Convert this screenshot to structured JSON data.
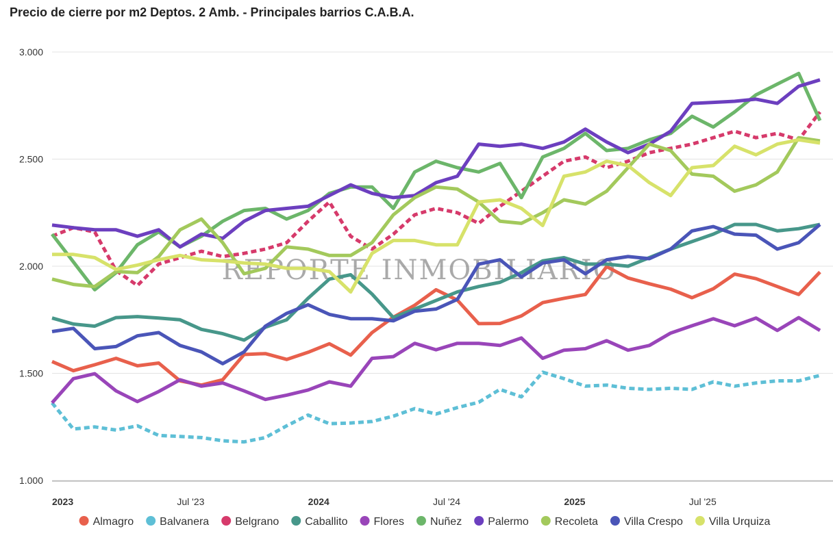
{
  "chart_data": {
    "type": "line",
    "title": "Precio de cierre por m2 Deptos. 2 Amb. - Principales barrios C.A.B.A.",
    "watermark": "REPORTE INMOBILIARIO",
    "xlabel": "",
    "ylabel": "",
    "ylim": [
      1000,
      3000
    ],
    "yticks": [
      {
        "value": 1000,
        "label": "1.000"
      },
      {
        "value": 1500,
        "label": "1.500"
      },
      {
        "value": 2000,
        "label": "2.000"
      },
      {
        "value": 2500,
        "label": "2.500"
      },
      {
        "value": 3000,
        "label": "3.000"
      }
    ],
    "xticks": [
      {
        "index": 0.5,
        "label": "2023",
        "bold": true
      },
      {
        "index": 6.5,
        "label": "Jul '23",
        "bold": false
      },
      {
        "index": 12.5,
        "label": "2024",
        "bold": true
      },
      {
        "index": 18.5,
        "label": "Jul '24",
        "bold": false
      },
      {
        "index": 24.5,
        "label": "2025",
        "bold": true
      },
      {
        "index": 30.5,
        "label": "Jul '25",
        "bold": false
      }
    ],
    "n_points": 37,
    "series": [
      {
        "name": "Almagro",
        "color": "#e8604c",
        "dashed": false,
        "values": [
          1555,
          1512,
          1540,
          1570,
          1535,
          1548,
          1465,
          1445,
          1470,
          1588,
          1592,
          1565,
          1598,
          1638,
          1585,
          1690,
          1762,
          1818,
          1890,
          1842,
          1732,
          1733,
          1768,
          1830,
          1850,
          1868,
          1998,
          1945,
          1918,
          1893,
          1853,
          1895,
          1963,
          1942,
          1905,
          1868,
          1973
        ]
      },
      {
        "name": "Balvanera",
        "color": "#5ebfd6",
        "dashed": true,
        "values": [
          1362,
          1240,
          1250,
          1235,
          1255,
          1210,
          1205,
          1200,
          1185,
          1180,
          1200,
          1255,
          1305,
          1265,
          1268,
          1275,
          1300,
          1335,
          1310,
          1340,
          1365,
          1425,
          1390,
          1505,
          1475,
          1440,
          1445,
          1430,
          1425,
          1430,
          1425,
          1460,
          1440,
          1455,
          1465,
          1465,
          1490
        ]
      },
      {
        "name": "Belgrano",
        "color": "#d63a6b",
        "dashed": true,
        "values": [
          2140,
          2180,
          2160,
          1980,
          1910,
          2010,
          2040,
          2070,
          2045,
          2060,
          2080,
          2110,
          2210,
          2300,
          2140,
          2080,
          2150,
          2240,
          2270,
          2250,
          2200,
          2280,
          2350,
          2420,
          2490,
          2510,
          2460,
          2490,
          2530,
          2550,
          2570,
          2600,
          2630,
          2600,
          2620,
          2590,
          2720
        ]
      },
      {
        "name": "Caballito",
        "color": "#47978a",
        "dashed": false,
        "values": [
          1758,
          1730,
          1720,
          1760,
          1765,
          1758,
          1750,
          1705,
          1685,
          1655,
          1715,
          1750,
          1850,
          1940,
          1960,
          1870,
          1760,
          1800,
          1840,
          1880,
          1905,
          1925,
          1970,
          2025,
          2040,
          2010,
          2010,
          2000,
          2040,
          2080,
          2115,
          2150,
          2195,
          2195,
          2165,
          2175,
          2195
        ]
      },
      {
        "name": "Flores",
        "color": "#9945b9",
        "dashed": false,
        "values": [
          1362,
          1475,
          1498,
          1418,
          1368,
          1415,
          1470,
          1440,
          1455,
          1418,
          1378,
          1398,
          1422,
          1460,
          1440,
          1570,
          1578,
          1640,
          1610,
          1640,
          1640,
          1630,
          1665,
          1570,
          1608,
          1615,
          1652,
          1608,
          1630,
          1688,
          1722,
          1755,
          1722,
          1758,
          1700,
          1760,
          1700
        ]
      },
      {
        "name": "Nuñez",
        "color": "#6cb66a",
        "dashed": false,
        "values": [
          2150,
          2020,
          1890,
          1970,
          2100,
          2160,
          2090,
          2140,
          2210,
          2260,
          2270,
          2220,
          2260,
          2340,
          2370,
          2370,
          2270,
          2440,
          2490,
          2460,
          2440,
          2480,
          2320,
          2510,
          2550,
          2620,
          2540,
          2550,
          2590,
          2620,
          2700,
          2650,
          2720,
          2800,
          2850,
          2900,
          2680
        ]
      },
      {
        "name": "Palermo",
        "color": "#6c3fbf",
        "dashed": false,
        "values": [
          2192,
          2180,
          2170,
          2170,
          2140,
          2170,
          2090,
          2150,
          2130,
          2210,
          2260,
          2270,
          2280,
          2330,
          2380,
          2340,
          2320,
          2330,
          2390,
          2420,
          2570,
          2560,
          2570,
          2550,
          2580,
          2640,
          2580,
          2530,
          2570,
          2630,
          2760,
          2765,
          2770,
          2780,
          2760,
          2840,
          2870
        ]
      },
      {
        "name": "Recoleta",
        "color": "#a3c95c",
        "dashed": false,
        "values": [
          1940,
          1915,
          1905,
          1975,
          1970,
          2045,
          2170,
          2220,
          2110,
          1965,
          1990,
          2090,
          2080,
          2050,
          2050,
          2110,
          2240,
          2320,
          2370,
          2360,
          2300,
          2210,
          2200,
          2250,
          2310,
          2290,
          2350,
          2460,
          2570,
          2540,
          2430,
          2420,
          2350,
          2380,
          2440,
          2600,
          2585
        ]
      },
      {
        "name": "Villa Crespo",
        "color": "#4a55b8",
        "dashed": false,
        "values": [
          1695,
          1710,
          1615,
          1625,
          1675,
          1690,
          1630,
          1600,
          1545,
          1600,
          1720,
          1780,
          1820,
          1775,
          1755,
          1755,
          1745,
          1790,
          1800,
          1845,
          2010,
          2030,
          1950,
          2015,
          2030,
          1965,
          2030,
          2045,
          2035,
          2080,
          2165,
          2185,
          2150,
          2145,
          2080,
          2110,
          2195
        ]
      },
      {
        "name": "Villa Urquiza",
        "color": "#d7e26a",
        "dashed": false,
        "values": [
          2055,
          2055,
          2040,
          1985,
          2005,
          2030,
          2050,
          2030,
          2025,
          2015,
          2010,
          1990,
          1990,
          1975,
          1880,
          2060,
          2120,
          2120,
          2100,
          2100,
          2300,
          2310,
          2270,
          2190,
          2420,
          2440,
          2490,
          2470,
          2390,
          2330,
          2460,
          2470,
          2560,
          2520,
          2570,
          2590,
          2575
        ]
      }
    ],
    "legend_position": "bottom"
  }
}
